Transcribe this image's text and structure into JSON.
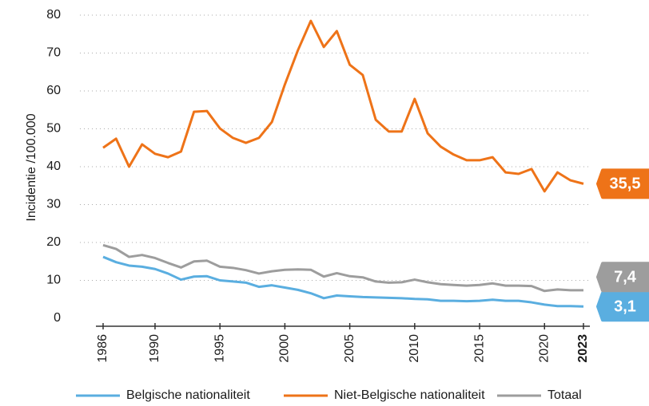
{
  "chart_data": {
    "type": "line",
    "y_label": "Incidentie /100.000",
    "x": [
      1986,
      1987,
      1988,
      1989,
      1990,
      1991,
      1992,
      1993,
      1994,
      1995,
      1996,
      1997,
      1998,
      1999,
      2000,
      2001,
      2002,
      2003,
      2004,
      2005,
      2006,
      2007,
      2008,
      2009,
      2010,
      2011,
      2012,
      2013,
      2014,
      2015,
      2016,
      2017,
      2018,
      2019,
      2020,
      2021,
      2022,
      2023
    ],
    "xlim": [
      1986,
      2023
    ],
    "xticks": [
      1986,
      1990,
      1995,
      2000,
      2005,
      2010,
      2015,
      2020,
      2023
    ],
    "ylim": [
      0,
      80
    ],
    "yticks": [
      0,
      10,
      20,
      30,
      40,
      50,
      60,
      70,
      80
    ],
    "grid": true,
    "legend": "bottom",
    "series": [
      {
        "name": "Belgische nationaliteit",
        "color": "#5aaee0",
        "values": [
          16.2,
          14.8,
          13.9,
          13.6,
          13.0,
          11.8,
          10.2,
          11.0,
          11.1,
          10.0,
          9.7,
          9.4,
          8.3,
          8.7,
          8.1,
          7.5,
          6.6,
          5.3,
          6.0,
          5.8,
          5.6,
          5.5,
          5.4,
          5.3,
          5.1,
          5.0,
          4.6,
          4.6,
          4.5,
          4.6,
          4.9,
          4.6,
          4.6,
          4.2,
          3.6,
          3.2,
          3.2,
          3.1
        ],
        "value_labels": [
          null,
          null,
          null,
          null,
          null,
          null,
          null,
          null,
          null,
          null,
          null,
          null,
          null,
          null,
          null,
          null,
          null,
          null,
          null,
          null,
          null,
          null,
          null,
          null,
          null,
          null,
          null,
          null,
          null,
          null,
          null,
          null,
          null,
          null,
          null,
          null,
          null,
          "3,1"
        ]
      },
      {
        "name": "Niet-Belgische nationaliteit",
        "color": "#ee7318",
        "values": [
          45.0,
          47.4,
          40.0,
          45.9,
          43.4,
          42.5,
          44.0,
          54.5,
          54.7,
          50.1,
          47.6,
          46.3,
          47.6,
          51.8,
          61.7,
          70.7,
          78.5,
          71.6,
          75.8,
          66.9,
          64.2,
          52.4,
          49.3,
          49.3,
          57.9,
          48.8,
          45.3,
          43.2,
          41.7,
          41.7,
          42.5,
          38.5,
          38.1,
          39.4,
          33.5,
          38.5,
          36.4,
          35.5
        ],
        "value_labels": [
          null,
          null,
          null,
          null,
          null,
          null,
          null,
          null,
          null,
          null,
          null,
          null,
          null,
          null,
          null,
          null,
          null,
          null,
          null,
          null,
          null,
          null,
          null,
          null,
          null,
          null,
          null,
          null,
          null,
          null,
          null,
          null,
          null,
          null,
          null,
          null,
          null,
          "35,5"
        ]
      },
      {
        "name": "Totaal",
        "color": "#9d9d9d",
        "values": [
          19.3,
          18.3,
          16.2,
          16.7,
          15.9,
          14.6,
          13.4,
          15.0,
          15.2,
          13.6,
          13.3,
          12.7,
          11.8,
          12.4,
          12.8,
          12.9,
          12.8,
          11.0,
          11.9,
          11.1,
          10.8,
          9.7,
          9.4,
          9.5,
          10.2,
          9.5,
          9.0,
          8.8,
          8.6,
          8.8,
          9.2,
          8.6,
          8.6,
          8.5,
          7.2,
          7.6,
          7.4,
          7.4
        ],
        "value_labels": [
          null,
          null,
          null,
          null,
          null,
          null,
          null,
          null,
          null,
          null,
          null,
          null,
          null,
          null,
          null,
          null,
          null,
          null,
          null,
          null,
          null,
          null,
          null,
          null,
          null,
          null,
          null,
          null,
          null,
          null,
          null,
          null,
          null,
          null,
          null,
          null,
          null,
          "7,4"
        ]
      }
    ]
  }
}
